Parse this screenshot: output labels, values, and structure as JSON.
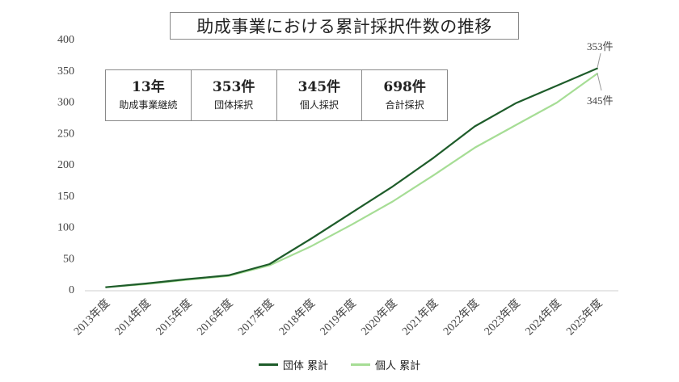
{
  "chart_data": {
    "type": "line",
    "title": "助成事業における累計採択件数の推移",
    "categories": [
      "2013年度",
      "2014年度",
      "2015年度",
      "2016年度",
      "2017年度",
      "2018年度",
      "2019年度",
      "2020年度",
      "2021年度",
      "2022年度",
      "2023年度",
      "2024年度",
      "2025年度"
    ],
    "series": [
      {
        "name": "団体 累計",
        "color": "#1e5c2a",
        "values": [
          3,
          9,
          16,
          22,
          40,
          80,
          122,
          164,
          210,
          260,
          297,
          325,
          353
        ]
      },
      {
        "name": "個人 累計",
        "color": "#a6dd95",
        "values": [
          3,
          8,
          15,
          21,
          38,
          68,
          103,
          140,
          182,
          226,
          262,
          298,
          345
        ]
      }
    ],
    "ylim": [
      0,
      400
    ],
    "yticks": [
      0,
      50,
      100,
      150,
      200,
      250,
      300,
      350,
      400
    ],
    "grid": false,
    "legend_position": "bottom",
    "end_labels": {
      "group": "353件",
      "individual": "345件"
    }
  },
  "stats": [
    {
      "value": "13年",
      "label": "助成事業継続"
    },
    {
      "value": "353件",
      "label": "団体採択"
    },
    {
      "value": "345件",
      "label": "個人採択"
    },
    {
      "value": "698件",
      "label": "合計採択"
    }
  ]
}
